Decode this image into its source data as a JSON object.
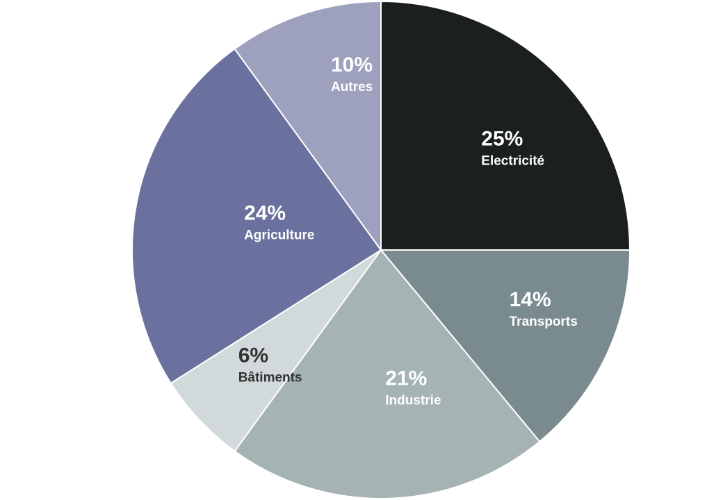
{
  "chart_data": {
    "type": "pie",
    "title": "",
    "categories": [
      "Electricité",
      "Transports",
      "Industrie",
      "Bâtiments",
      "Agriculture",
      "Autres"
    ],
    "values": [
      25,
      14,
      21,
      6,
      24,
      10
    ],
    "value_labels": [
      "25%",
      "14%",
      "21%",
      "6%",
      "24%",
      "10%"
    ],
    "colors": [
      "#1b1f1e",
      "#798b8e",
      "#a5b3b5",
      "#d1d9da",
      "#6b719e",
      "#9ea1bd"
    ],
    "label_colors": [
      "#ffffff",
      "#ffffff",
      "#ffffff",
      "#333333",
      "#ffffff",
      "#ffffff"
    ],
    "start_angle": "12 o'clock",
    "direction": "clockwise",
    "legend": "none (labels inside slices)"
  }
}
